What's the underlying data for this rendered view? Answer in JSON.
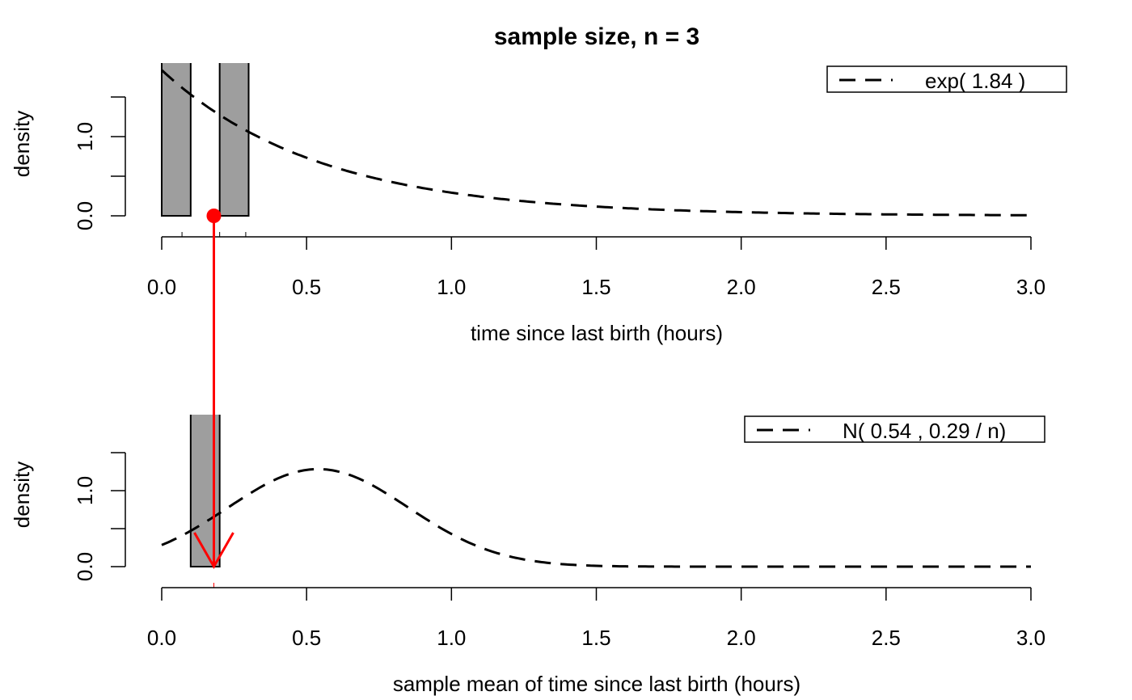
{
  "title": "sample size, n =  3",
  "colors": {
    "bar_fill": "#9e9e9e",
    "line": "#000000",
    "arrow": "#ff0000"
  },
  "chart_data": [
    {
      "type": "histogram",
      "xlabel": "time since last birth (hours)",
      "ylabel": "density",
      "xlim": [
        0,
        3
      ],
      "x_ticks": [
        "0.0",
        "0.5",
        "1.0",
        "1.5",
        "2.0",
        "2.5",
        "3.0"
      ],
      "y_ticks": [
        "0.0",
        "1.0"
      ],
      "bins": [
        {
          "from": 0.0,
          "to": 0.1,
          "density": 3.33
        },
        {
          "from": 0.1,
          "to": 0.2,
          "density": 0.0
        },
        {
          "from": 0.2,
          "to": 0.3,
          "density": 3.33
        }
      ],
      "rug": [
        0.07,
        0.2,
        0.29
      ],
      "curve": {
        "kind": "exponential",
        "rate": 1.84,
        "style": "dashed"
      },
      "legend": {
        "position": "top-right",
        "label": "exp( 1.84 )"
      },
      "highlight_point": {
        "x": 0.18,
        "y": 0.0
      }
    },
    {
      "type": "histogram",
      "xlabel": "sample mean of time since last birth (hours)",
      "ylabel": "density",
      "xlim": [
        0,
        3
      ],
      "x_ticks": [
        "0.0",
        "0.5",
        "1.0",
        "1.5",
        "2.0",
        "2.5",
        "3.0"
      ],
      "y_ticks": [
        "0.0",
        "1.0"
      ],
      "bins": [
        {
          "from": 0.1,
          "to": 0.2,
          "density": 10.0
        }
      ],
      "rug": [
        0.18
      ],
      "curve": {
        "kind": "normal",
        "mean": 0.54,
        "variance": 0.29,
        "n": 3,
        "style": "dashed"
      },
      "legend": {
        "position": "top-right",
        "label": "N( 0.54 , 0.29 / n)"
      }
    }
  ],
  "arrow": {
    "from_x": 0.18,
    "to_x": 0.18,
    "description_none": ""
  }
}
